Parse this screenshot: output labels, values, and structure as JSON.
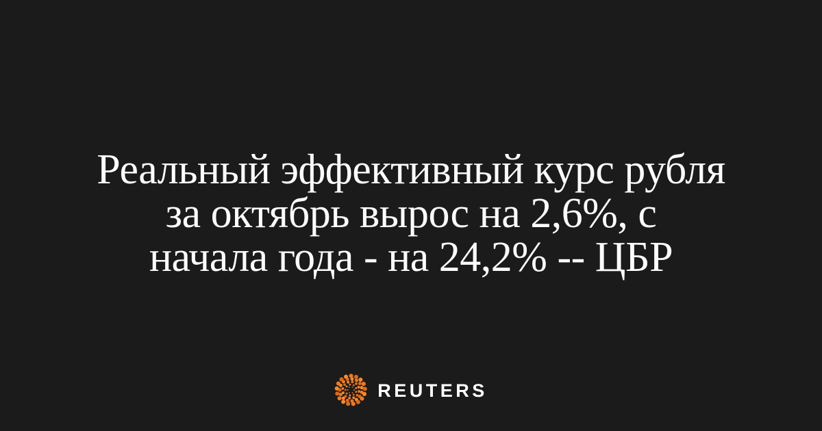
{
  "card": {
    "background": "#1B1B1C",
    "headline": {
      "color": "#FCFCFC",
      "lines": [
        "Реальный эффективный курс рубля",
        "за октябрь вырос на 2,6%, с",
        "начала года - на 24,2% -- ЦБР"
      ]
    },
    "logo": {
      "brand": "Reuters",
      "wordmark": "REUTERS",
      "wordmark_color": "#FFFFFF",
      "orb_colors": [
        "#F9892B",
        "#EF7A1E",
        "#DE6B12"
      ]
    }
  }
}
